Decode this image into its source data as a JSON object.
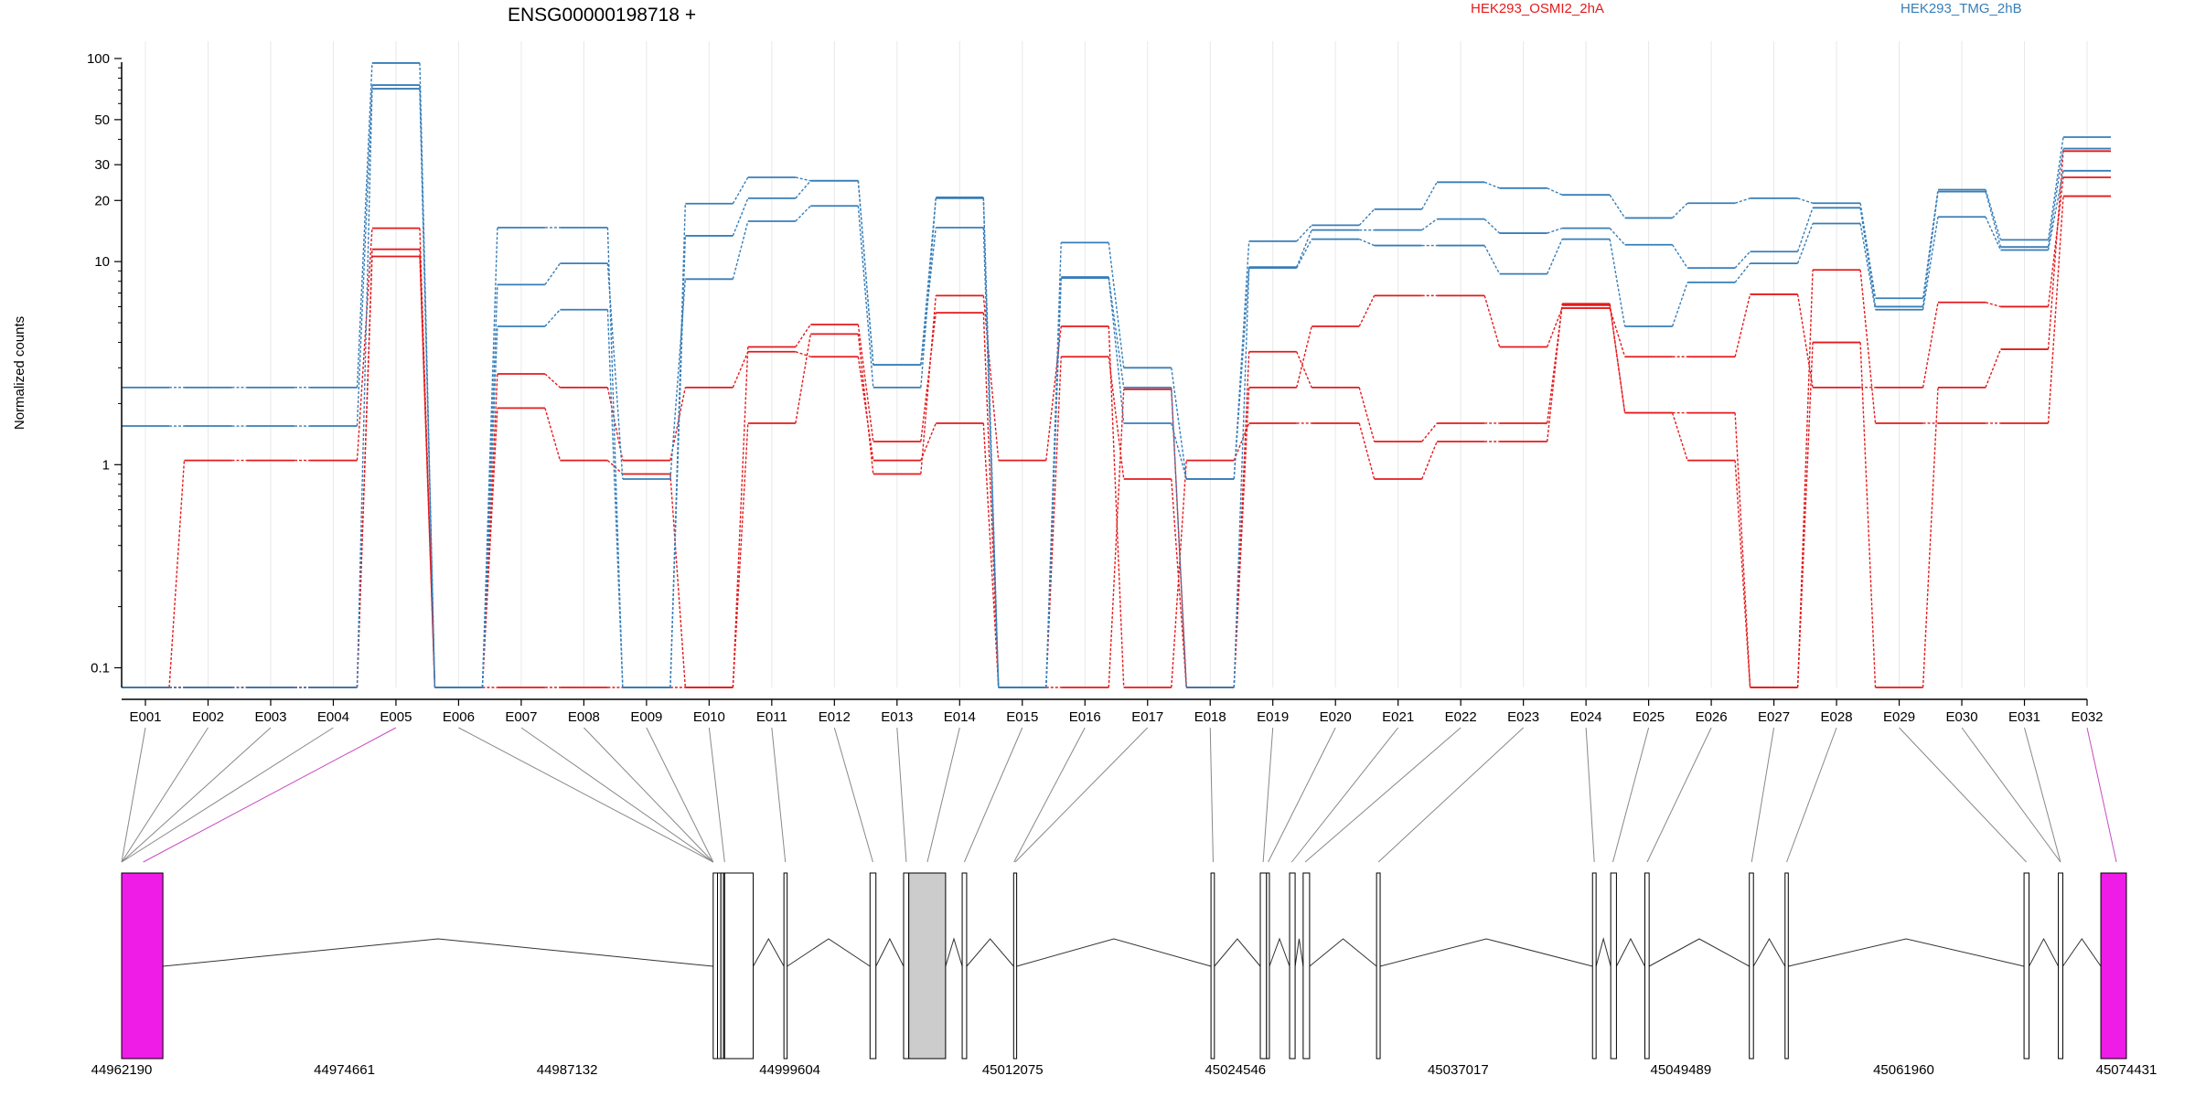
{
  "chart_data": {
    "type": "line",
    "title": "ENSG00000198718 +",
    "ylabel": "Normalized counts",
    "y_scale": "log",
    "y_ticks": [
      0.1,
      1,
      10,
      20,
      30,
      50,
      100
    ],
    "y_tick_labels": [
      "0.1",
      "1",
      "10",
      "20",
      "30",
      "50",
      "100"
    ],
    "ylim": [
      0.08,
      100
    ],
    "grid": true,
    "legend_position": "top",
    "legend": [
      {
        "label": "HEK293_OSMI2_2hA",
        "color": "#e41a1c"
      },
      {
        "label": "HEK293_TMG_2hB",
        "color": "#377eb8"
      }
    ],
    "categories": [
      "E001",
      "E002",
      "E003",
      "E004",
      "E005",
      "E006",
      "E007",
      "E008",
      "E009",
      "E010",
      "E011",
      "E012",
      "E013",
      "E014",
      "E015",
      "E016",
      "E017",
      "E018",
      "E019",
      "E020",
      "E021",
      "E022",
      "E023",
      "E024",
      "E025",
      "E026",
      "E027",
      "E028",
      "E029",
      "E030",
      "E031",
      "E032"
    ],
    "series": [
      {
        "group": 0,
        "color": "#e41a1c",
        "values": [
          0.08,
          1.05,
          1.05,
          1.05,
          14.6,
          0.08,
          0.08,
          0.08,
          0.08,
          0.08,
          1.6,
          4.4,
          0.9,
          6.8,
          1.05,
          4.8,
          0.08,
          1.05,
          1.6,
          1.6,
          0.85,
          1.3,
          1.3,
          6.2,
          1.8,
          1.05,
          0.08,
          4.0,
          0.08,
          2.4,
          3.7,
          35
        ]
      },
      {
        "group": 0,
        "color": "#e41a1c",
        "values": [
          0.08,
          0.08,
          0.08,
          0.08,
          11.5,
          0.08,
          2.8,
          2.4,
          1.05,
          2.4,
          3.6,
          3.4,
          1.05,
          1.6,
          0.08,
          3.4,
          0.85,
          0.08,
          2.4,
          4.8,
          6.8,
          6.8,
          3.8,
          5.9,
          3.4,
          3.4,
          6.9,
          2.4,
          2.4,
          6.3,
          6.0,
          26
        ]
      },
      {
        "group": 0,
        "color": "#e41a1c",
        "values": [
          0.08,
          0.08,
          0.08,
          0.08,
          10.6,
          0.08,
          1.9,
          1.05,
          0.9,
          0.08,
          3.8,
          4.9,
          1.3,
          5.6,
          0.08,
          0.08,
          2.35,
          0.08,
          3.6,
          2.4,
          1.3,
          1.6,
          1.6,
          6.1,
          1.8,
          1.8,
          0.08,
          9.1,
          1.6,
          1.6,
          1.6,
          21
        ]
      },
      {
        "group": 1,
        "color": "#377eb8",
        "values": [
          2.4,
          2.4,
          2.4,
          2.4,
          95,
          0.08,
          14.7,
          14.7,
          0.08,
          19.3,
          26,
          25,
          3.1,
          20.7,
          0.08,
          12.4,
          3.0,
          0.85,
          12.6,
          15.1,
          18.1,
          24.6,
          23.0,
          21.3,
          16.4,
          19.4,
          20.5,
          19.4,
          6.6,
          22.6,
          12.8,
          41
        ]
      },
      {
        "group": 1,
        "color": "#377eb8",
        "values": [
          1.55,
          1.55,
          1.55,
          1.55,
          74,
          0.08,
          7.7,
          9.8,
          0.85,
          8.2,
          15.8,
          18.8,
          2.4,
          20.5,
          0.08,
          8.4,
          1.6,
          0.85,
          9.4,
          14.3,
          14.3,
          16.2,
          13.8,
          14.6,
          12.1,
          9.3,
          11.2,
          18.4,
          6.0,
          22.1,
          11.8,
          36
        ]
      },
      {
        "group": 1,
        "color": "#377eb8",
        "values": [
          0.08,
          0.08,
          0.08,
          0.08,
          71,
          0.08,
          4.8,
          5.8,
          0.08,
          13.4,
          20.5,
          25,
          3.1,
          14.7,
          0.08,
          8.3,
          2.4,
          0.08,
          9.3,
          12.9,
          12.0,
          12.0,
          8.7,
          12.9,
          4.8,
          7.9,
          9.8,
          15.4,
          5.8,
          16.6,
          11.4,
          28
        ]
      }
    ]
  },
  "gene_model": {
    "coordinate_labels": [
      "44962190",
      "44974661",
      "44987132",
      "44999604",
      "45012075",
      "45024546",
      "45037017",
      "45049489",
      "45061960",
      "45074431"
    ],
    "exon_bins": [
      {
        "start": 44962190,
        "end": 44964500,
        "color": "#ee1ce6"
      },
      {
        "start": 44995310,
        "end": 44995550,
        "color": "#ffffff"
      },
      {
        "start": 44995550,
        "end": 44995740,
        "color": "#ffffff"
      },
      {
        "start": 44995740,
        "end": 44995890,
        "color": "#ffffff"
      },
      {
        "start": 44995890,
        "end": 44995950,
        "color": "#ffffff"
      },
      {
        "start": 44995950,
        "end": 44997550,
        "color": "#ffffff"
      },
      {
        "start": 44999270,
        "end": 44999450,
        "color": "#ffffff"
      },
      {
        "start": 45004090,
        "end": 45004420,
        "color": "#ffffff"
      },
      {
        "start": 45005970,
        "end": 45006260,
        "color": "#ffffff"
      },
      {
        "start": 45006260,
        "end": 45008320,
        "color": "#cccccc"
      },
      {
        "start": 45009250,
        "end": 45009500,
        "color": "#ffffff"
      },
      {
        "start": 45012130,
        "end": 45012300,
        "color": "#ffffff"
      },
      {
        "start": 45023180,
        "end": 45023370,
        "color": "#ffffff"
      },
      {
        "start": 45025940,
        "end": 45026290,
        "color": "#ffffff"
      },
      {
        "start": 45026290,
        "end": 45026450,
        "color": "#ffffff"
      },
      {
        "start": 45027580,
        "end": 45027890,
        "color": "#ffffff"
      },
      {
        "start": 45028340,
        "end": 45028700,
        "color": "#ffffff"
      },
      {
        "start": 45032450,
        "end": 45032650,
        "color": "#ffffff"
      },
      {
        "start": 45044540,
        "end": 45044740,
        "color": "#ffffff"
      },
      {
        "start": 45045560,
        "end": 45045880,
        "color": "#ffffff"
      },
      {
        "start": 45047470,
        "end": 45047710,
        "color": "#ffffff"
      },
      {
        "start": 45053320,
        "end": 45053550,
        "color": "#ffffff"
      },
      {
        "start": 45055320,
        "end": 45055500,
        "color": "#ffffff"
      },
      {
        "start": 45068700,
        "end": 45068980,
        "color": "#ffffff"
      },
      {
        "start": 45070620,
        "end": 45070870,
        "color": "#ffffff"
      },
      {
        "start": 45073780,
        "end": 45073960,
        "color": "#ffffff"
      },
      {
        "start": 45073000,
        "end": 45074431,
        "color": "#ee1ce6"
      }
    ],
    "exon_anchors": [
      44962190,
      44962190,
      44962190,
      44962190,
      44963400,
      44995310,
      44995310,
      44995310,
      44995310,
      44995950,
      44999350,
      45004250,
      45006120,
      45007300,
      45009370,
      45012150,
      45012220,
      45023300,
      45026100,
      45026380,
      45027700,
      45028450,
      45032550,
      45044640,
      45045680,
      45047600,
      45053450,
      45055410,
      45068830,
      45070740,
      45070740,
      45073870
    ]
  }
}
